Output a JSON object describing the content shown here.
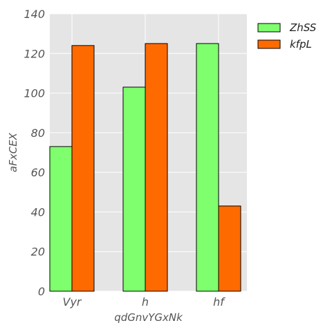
{
  "chart_data": {
    "type": "bar",
    "categories": [
      "Vyr",
      "h",
      "hf"
    ],
    "series": [
      {
        "name": "ZhSS",
        "values": [
          73,
          103,
          125
        ],
        "color": "#7fff6e"
      },
      {
        "name": "kfpL",
        "values": [
          124,
          125,
          43
        ],
        "color": "#ff6a00"
      }
    ],
    "xlabel": "qdGnvYGxNk",
    "ylabel": "aFxCEX",
    "ylim": [
      0,
      140
    ],
    "yticks": [
      0,
      20,
      40,
      60,
      80,
      100,
      120,
      140
    ],
    "grid": true,
    "legend_position": "outside-top-right",
    "background_color": "#e5e5e5",
    "grid_color": "#ffffff"
  }
}
